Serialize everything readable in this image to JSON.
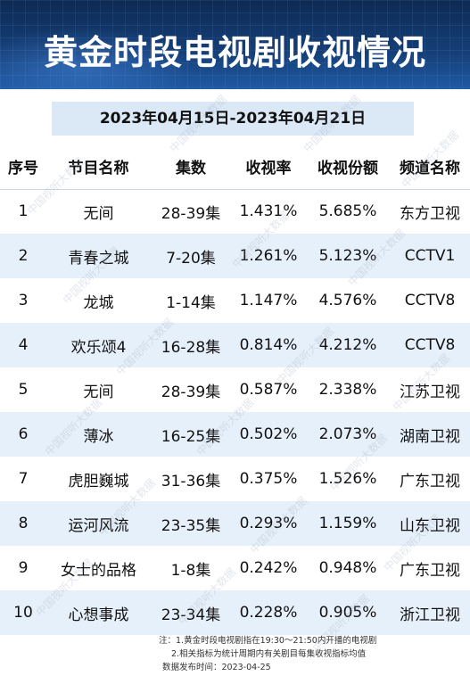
{
  "title": "黄金时段电视剧收视情况",
  "date_range": "2023年04月15日-2023年04月21日",
  "table": {
    "headers": [
      "序号",
      "节目名称",
      "集数",
      "收视率",
      "收视份额",
      "频道名称"
    ],
    "rows": [
      {
        "rank": "1",
        "name": "无间",
        "episodes": "28-39集",
        "rating": "1.431%",
        "share": "5.685%",
        "channel": "东方卫视"
      },
      {
        "rank": "2",
        "name": "青春之城",
        "episodes": "7-20集",
        "rating": "1.261%",
        "share": "5.123%",
        "channel": "CCTV1"
      },
      {
        "rank": "3",
        "name": "龙城",
        "episodes": "1-14集",
        "rating": "1.147%",
        "share": "4.576%",
        "channel": "CCTV8"
      },
      {
        "rank": "4",
        "name": "欢乐颂4",
        "episodes": "16-28集",
        "rating": "0.814%",
        "share": "4.212%",
        "channel": "CCTV8"
      },
      {
        "rank": "5",
        "name": "无间",
        "episodes": "28-39集",
        "rating": "0.587%",
        "share": "2.338%",
        "channel": "江苏卫视"
      },
      {
        "rank": "6",
        "name": "薄冰",
        "episodes": "16-25集",
        "rating": "0.502%",
        "share": "2.073%",
        "channel": "湖南卫视"
      },
      {
        "rank": "7",
        "name": "虎胆巍城",
        "episodes": "31-36集",
        "rating": "0.375%",
        "share": "1.526%",
        "channel": "广东卫视"
      },
      {
        "rank": "8",
        "name": "运河风流",
        "episodes": "23-35集",
        "rating": "0.293%",
        "share": "1.159%",
        "channel": "山东卫视"
      },
      {
        "rank": "9",
        "name": "女士的品格",
        "episodes": "1-8集",
        "rating": "0.242%",
        "share": "0.948%",
        "channel": "广东卫视"
      },
      {
        "rank": "10",
        "name": "心想事成",
        "episodes": "23-34集",
        "rating": "0.228%",
        "share": "0.905%",
        "channel": "浙江卫视"
      }
    ]
  },
  "notes": {
    "line1": "注：1.黄金时段电视剧指在19:30～21:50内开播的电视剧",
    "line2": "2.相关指标为统计周期内有关剧目每集收视指标均值",
    "line3": "数据发布时间：2023-04-25"
  },
  "watermark_text": "中国视听大数据",
  "colors": {
    "header_bg": "#163f78",
    "date_bar_bg": "#dbe8f6",
    "row_alt_bg": "#e6f0fa"
  }
}
